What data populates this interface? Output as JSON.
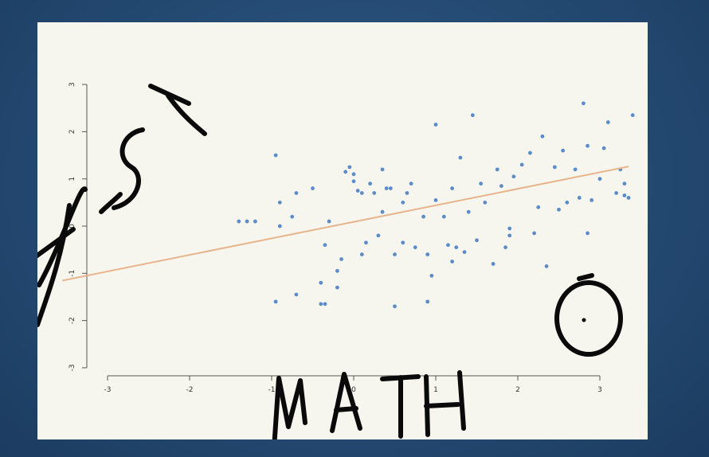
{
  "chart_data": {
    "type": "scatter",
    "title": "",
    "xlabel": "",
    "ylabel": "",
    "xlim": [
      -3,
      3.2
    ],
    "ylim": [
      -3,
      3
    ],
    "x_ticks": [
      "-3",
      "-2",
      "-1",
      "0",
      "1",
      "2",
      "3"
    ],
    "y_ticks": [
      "-3",
      "-2",
      "-1",
      "0",
      "1",
      "2",
      "3"
    ],
    "grid": false,
    "colors": {
      "points": "#5b8cc9",
      "fit_line": "#e8b48c"
    },
    "fit_line": {
      "intercept": 0.09,
      "slope": 0.35
    },
    "points": [
      [
        -1.4,
        0.1
      ],
      [
        -1.3,
        0.1
      ],
      [
        -1.2,
        0.1
      ],
      [
        -0.9,
        0.0
      ],
      [
        -0.9,
        0.5
      ],
      [
        -0.95,
        1.5
      ],
      [
        -0.95,
        -1.6
      ],
      [
        -0.75,
        0.2
      ],
      [
        -0.7,
        0.7
      ],
      [
        -0.7,
        -1.45
      ],
      [
        -0.5,
        0.8
      ],
      [
        -0.4,
        -1.65
      ],
      [
        -0.4,
        -1.2
      ],
      [
        -0.35,
        -0.4
      ],
      [
        -0.3,
        0.1
      ],
      [
        -0.2,
        -0.95
      ],
      [
        -0.2,
        -1.3
      ],
      [
        -0.15,
        -0.7
      ],
      [
        -0.1,
        1.15
      ],
      [
        -0.05,
        1.25
      ],
      [
        0.0,
        1.1
      ],
      [
        0.0,
        0.95
      ],
      [
        0.05,
        0.75
      ],
      [
        0.1,
        0.7
      ],
      [
        0.1,
        -0.6
      ],
      [
        0.15,
        -0.35
      ],
      [
        0.2,
        0.9
      ],
      [
        0.25,
        0.7
      ],
      [
        0.3,
        -0.2
      ],
      [
        0.35,
        0.3
      ],
      [
        0.35,
        1.2
      ],
      [
        0.4,
        0.8
      ],
      [
        0.45,
        0.8
      ],
      [
        0.5,
        -0.6
      ],
      [
        0.5,
        -1.7
      ],
      [
        0.6,
        0.5
      ],
      [
        0.6,
        -0.35
      ],
      [
        0.65,
        0.7
      ],
      [
        0.7,
        0.9
      ],
      [
        0.75,
        -0.45
      ],
      [
        0.85,
        0.2
      ],
      [
        0.9,
        -0.6
      ],
      [
        0.9,
        -1.6
      ],
      [
        0.95,
        -1.05
      ],
      [
        1.0,
        0.55
      ],
      [
        1.0,
        2.15
      ],
      [
        1.1,
        0.2
      ],
      [
        1.15,
        -0.4
      ],
      [
        1.2,
        0.8
      ],
      [
        1.2,
        -0.75
      ],
      [
        1.25,
        -0.45
      ],
      [
        1.3,
        1.45
      ],
      [
        1.35,
        -0.55
      ],
      [
        1.4,
        0.3
      ],
      [
        1.45,
        2.35
      ],
      [
        1.5,
        -0.3
      ],
      [
        1.55,
        0.9
      ],
      [
        1.6,
        0.5
      ],
      [
        1.7,
        -0.8
      ],
      [
        1.75,
        1.2
      ],
      [
        1.8,
        0.85
      ],
      [
        1.85,
        -0.45
      ],
      [
        1.9,
        -0.2
      ],
      [
        1.9,
        -0.05
      ],
      [
        1.95,
        1.05
      ],
      [
        2.05,
        1.3
      ],
      [
        2.15,
        1.55
      ],
      [
        2.2,
        -0.15
      ],
      [
        2.25,
        0.4
      ],
      [
        2.3,
        1.9
      ],
      [
        2.35,
        -0.85
      ],
      [
        2.45,
        1.25
      ],
      [
        2.5,
        0.35
      ],
      [
        2.55,
        1.6
      ],
      [
        2.6,
        0.5
      ],
      [
        2.7,
        1.2
      ],
      [
        2.75,
        0.6
      ],
      [
        2.85,
        -0.15
      ],
      [
        2.85,
        1.7
      ],
      [
        2.9,
        0.55
      ],
      [
        3.0,
        1.0
      ],
      [
        3.05,
        1.65
      ],
      [
        3.1,
        2.2
      ],
      [
        3.2,
        0.7
      ],
      [
        3.25,
        1.2
      ],
      [
        3.3,
        0.9
      ],
      [
        3.3,
        0.65
      ],
      [
        3.35,
        0.6
      ],
      [
        3.4,
        2.35
      ],
      [
        2.8,
        2.6
      ],
      [
        -0.35,
        -1.65
      ]
    ]
  }
}
